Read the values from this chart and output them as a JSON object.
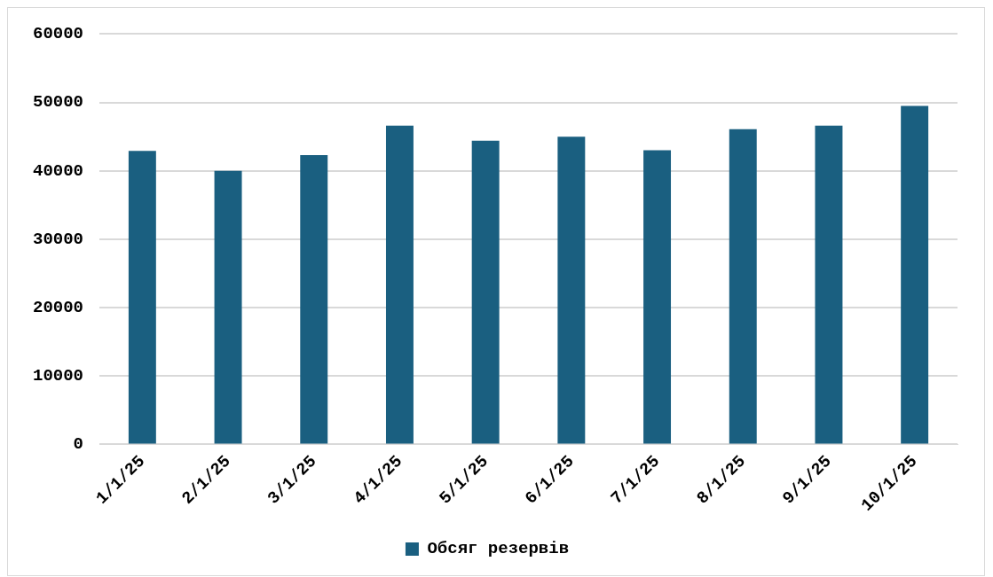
{
  "chart_data": {
    "type": "bar",
    "categories": [
      "1/1/25",
      "2/1/25",
      "3/1/25",
      "4/1/25",
      "5/1/25",
      "6/1/25",
      "7/1/25",
      "8/1/25",
      "9/1/25",
      "10/1/25"
    ],
    "series": [
      {
        "name": "Обсяг резервів",
        "color": "#1a5f80",
        "values": [
          42900,
          40000,
          42300,
          46600,
          44400,
          45000,
          43000,
          46100,
          46600,
          49500
        ]
      }
    ],
    "ylim": [
      0,
      60000
    ],
    "yticks": [
      0,
      10000,
      20000,
      30000,
      40000,
      50000,
      60000
    ],
    "grid": "y",
    "legend": "bottom"
  }
}
